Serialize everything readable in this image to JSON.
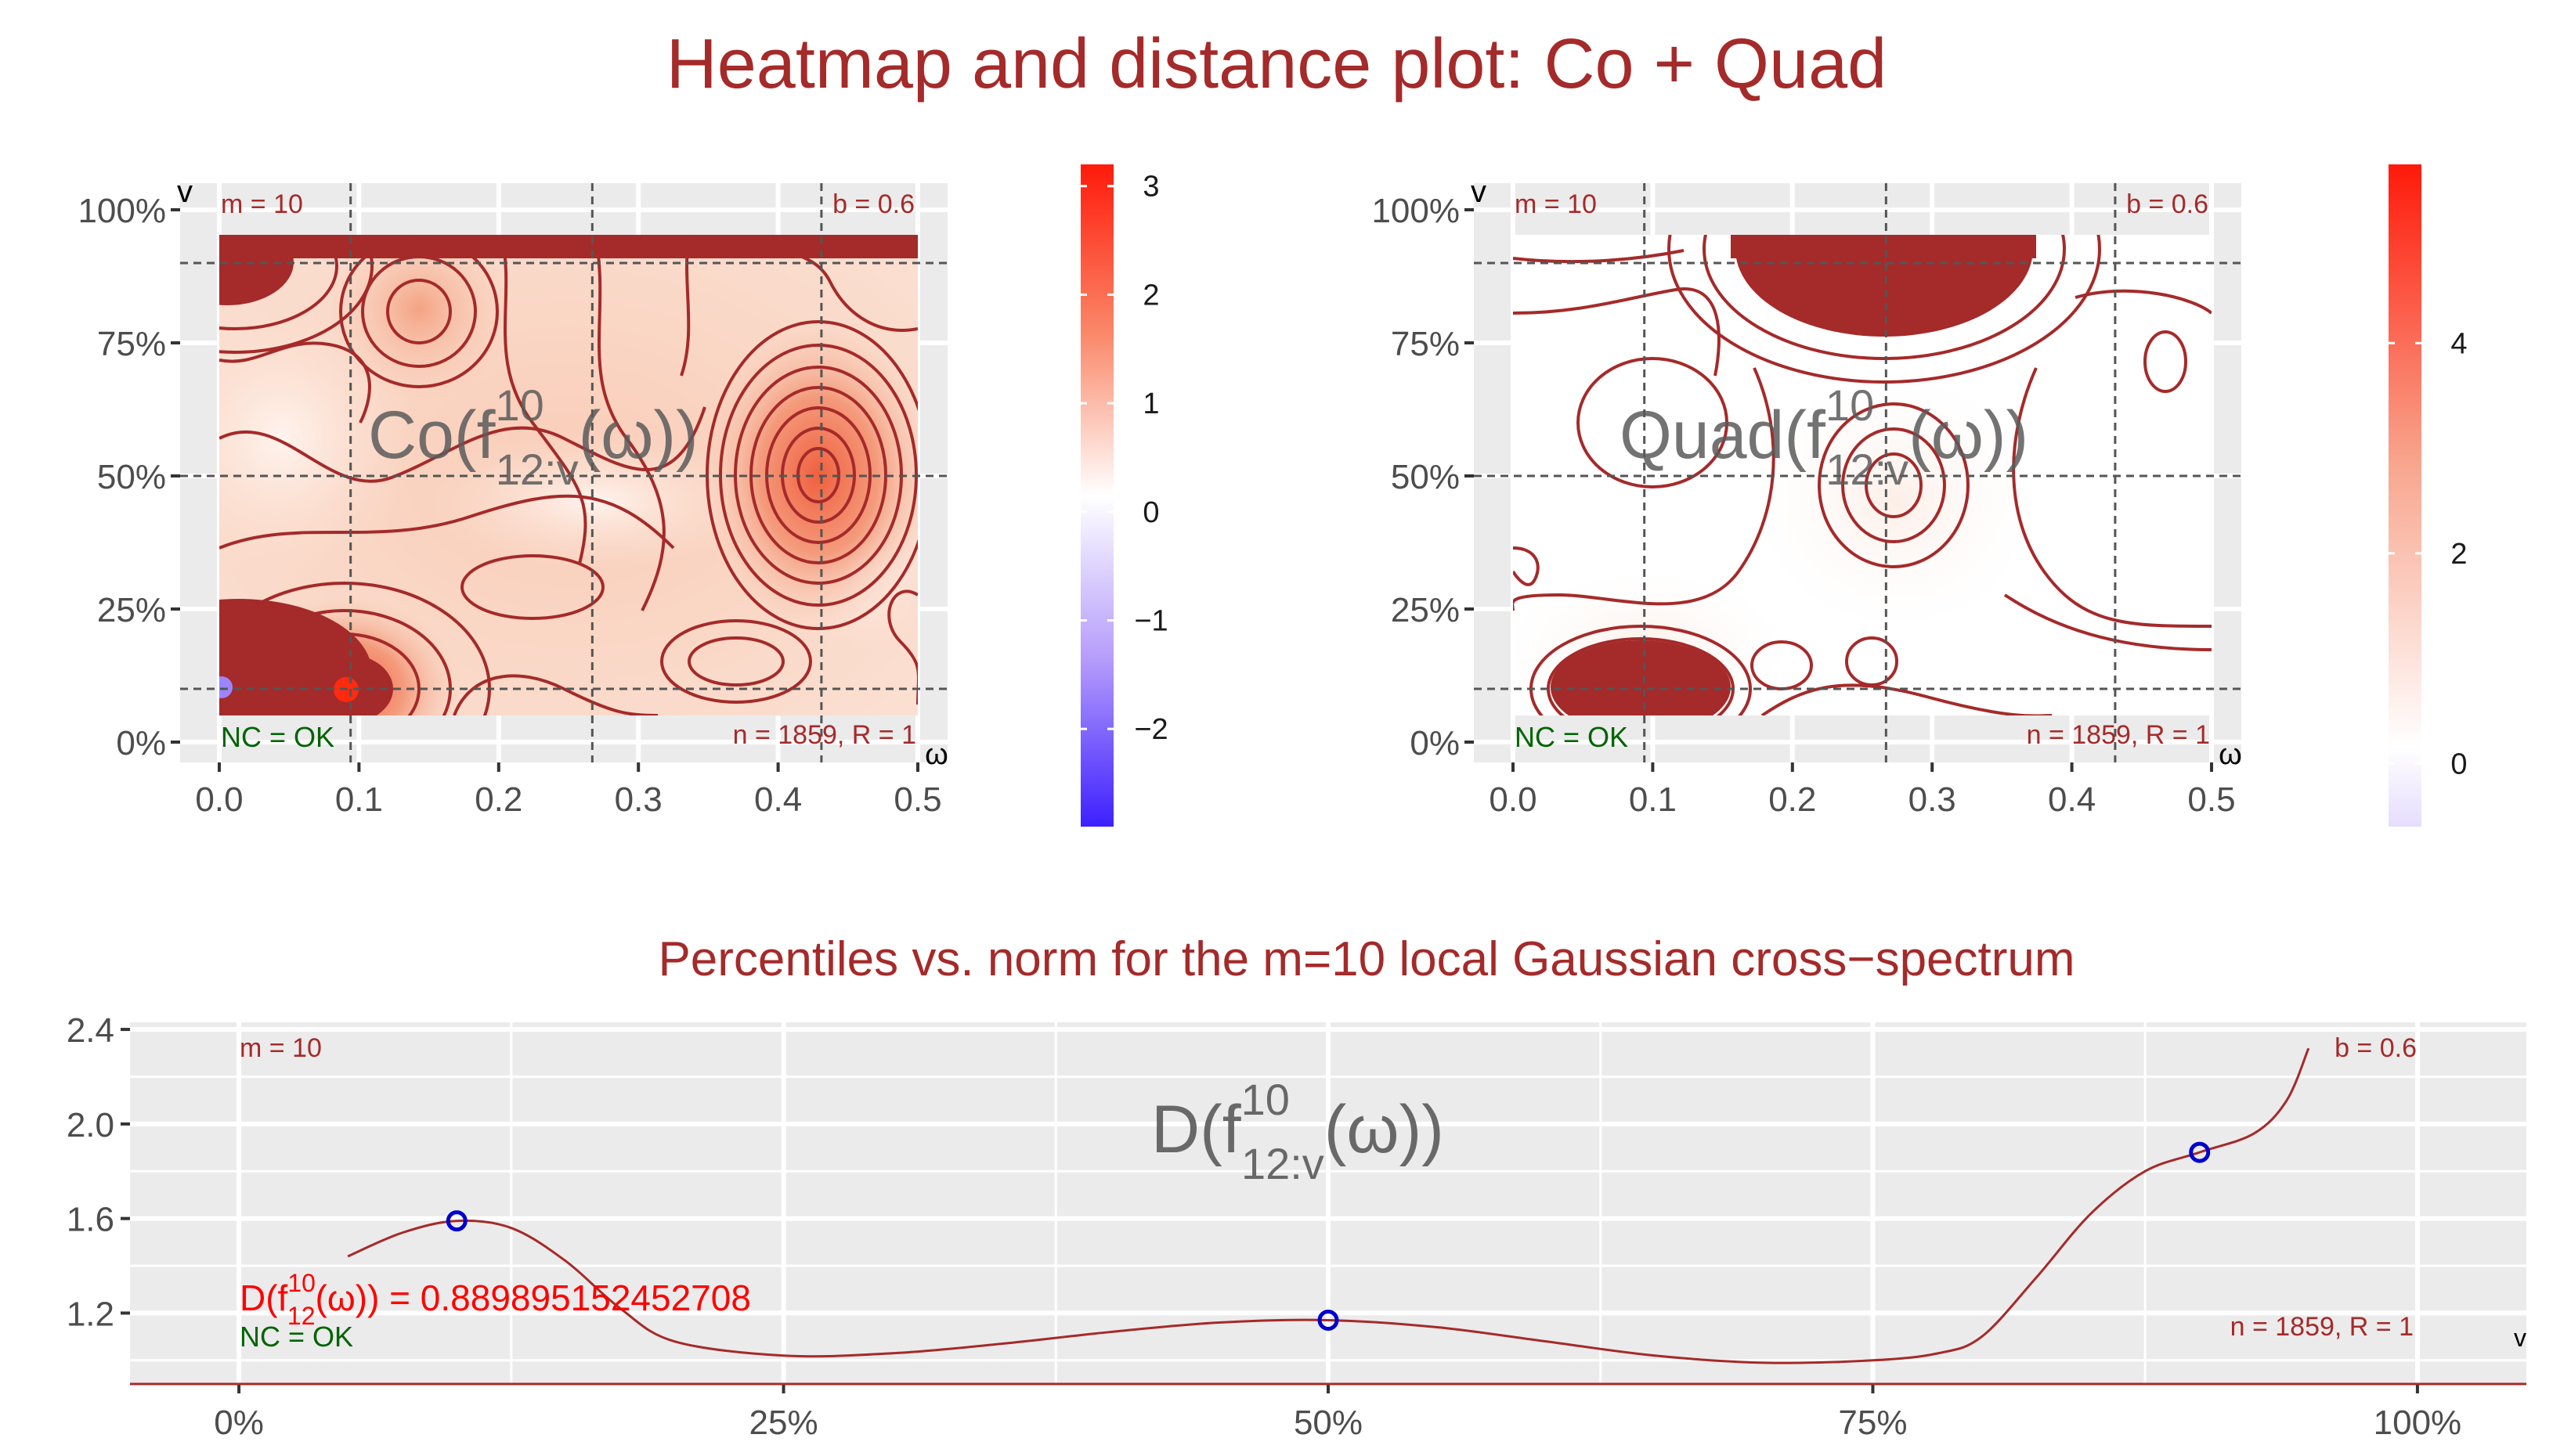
{
  "title": "Heatmap and distance plot: Co + Quad",
  "colors": {
    "title": "#A52A2A",
    "contour": "#A52A2A",
    "panel_bg": "#EBEBEB",
    "grid": "#FFFFFF",
    "low": "#3D20FF",
    "mid": "#FFFFFF",
    "high": "#FF2A10",
    "nc_label": "#006400",
    "point": "#0000CD",
    "distance_label": "#FF0000",
    "axis_text": "#4D4D4D"
  },
  "chart_data": [
    {
      "type": "heatmap",
      "id": "co",
      "panel_label": "Co(f^10_12:v(ω))",
      "label_main": "Co(f",
      "label_sup": "10",
      "label_sub": "12:v",
      "label_arg": "(ω))",
      "xlabel": "ω",
      "ylabel": "v",
      "xlim": [
        0,
        0.5
      ],
      "ylim": [
        0,
        1
      ],
      "data_range_y": [
        0.05,
        0.95
      ],
      "xticks": [
        "0.0",
        "0.1",
        "0.2",
        "0.3",
        "0.4",
        "0.5"
      ],
      "xtick_values": [
        0,
        0.1,
        0.2,
        0.3,
        0.4,
        0.5
      ],
      "yticks": [
        "0%",
        "25%",
        "50%",
        "75%",
        "100%"
      ],
      "ytick_values": [
        0,
        0.25,
        0.5,
        0.75,
        1.0
      ],
      "vlines": [
        0.094,
        0.267,
        0.431
      ],
      "hlines": [
        0.1,
        0.5,
        0.9
      ],
      "annot_topleft": "m = 10",
      "annot_topright": "b = 0.6",
      "annot_bottomleft": "NC = OK",
      "annot_bottomright": "n = 1859, R = 1",
      "colorbar": {
        "ticks": [
          "3",
          "2",
          "1",
          "0",
          "−1",
          "−2"
        ],
        "tick_values": [
          3,
          2,
          1,
          0,
          -1,
          -2
        ],
        "range": [
          -2.9,
          3.2
        ]
      }
    },
    {
      "type": "heatmap",
      "id": "quad",
      "panel_label": "Quad(f^10_12:v(ω))",
      "label_main": "Quad(f",
      "label_sup": "10",
      "label_sub": "12:v",
      "label_arg": "(ω))",
      "xlabel": "ω",
      "ylabel": "v",
      "xlim": [
        0,
        0.5
      ],
      "ylim": [
        0,
        1
      ],
      "data_range_y": [
        0.05,
        0.95
      ],
      "xticks": [
        "0.0",
        "0.1",
        "0.2",
        "0.3",
        "0.4",
        "0.5"
      ],
      "xtick_values": [
        0,
        0.1,
        0.2,
        0.3,
        0.4,
        0.5
      ],
      "yticks": [
        "0%",
        "25%",
        "50%",
        "75%",
        "100%"
      ],
      "ytick_values": [
        0,
        0.25,
        0.5,
        0.75,
        1.0
      ],
      "vlines": [
        0.094,
        0.267,
        0.431
      ],
      "hlines": [
        0.1,
        0.5,
        0.9
      ],
      "annot_topleft": "m = 10",
      "annot_topright": "b = 0.6",
      "annot_bottomleft": "NC = OK",
      "annot_bottomright": "n = 1859, R = 1",
      "colorbar": {
        "ticks": [
          "4",
          "2",
          "0"
        ],
        "tick_values": [
          4,
          2,
          0
        ],
        "range": [
          -0.6,
          5.7
        ]
      }
    },
    {
      "type": "line",
      "id": "distance",
      "title": "Percentiles vs. norm for the m=10 local Gaussian cross−spectrum",
      "panel_label": "D(f^10_12:v(ω))",
      "label_main": "D(f",
      "label_sup": "10",
      "label_sub": "12:v",
      "label_arg": "(ω))",
      "xlabel": "v",
      "xlim": [
        -0.05,
        1.05
      ],
      "ylim": [
        0.9,
        2.43
      ],
      "xticks": [
        "0%",
        "25%",
        "50%",
        "75%",
        "100%"
      ],
      "xtick_values": [
        0,
        0.25,
        0.5,
        0.75,
        1.0
      ],
      "yticks": [
        "2.4",
        "2.0",
        "1.6",
        "1.2"
      ],
      "ytick_values": [
        2.4,
        2.0,
        1.6,
        1.2
      ],
      "hline": 0.9,
      "curve": {
        "x": [
          0.05,
          0.075,
          0.1,
          0.125,
          0.15,
          0.175,
          0.2,
          0.25,
          0.3,
          0.35,
          0.4,
          0.45,
          0.5,
          0.55,
          0.6,
          0.65,
          0.7,
          0.75,
          0.78,
          0.8,
          0.825,
          0.85,
          0.875,
          0.9,
          0.925,
          0.94,
          0.95
        ],
        "y": [
          1.44,
          1.54,
          1.59,
          1.56,
          1.42,
          1.22,
          1.08,
          1.02,
          1.03,
          1.07,
          1.12,
          1.16,
          1.17,
          1.14,
          1.08,
          1.02,
          0.99,
          1.0,
          1.03,
          1.1,
          1.35,
          1.62,
          1.8,
          1.88,
          1.96,
          2.1,
          2.32
        ]
      },
      "points": {
        "x": [
          0.1,
          0.5,
          0.9
        ],
        "y": [
          1.59,
          1.17,
          1.88
        ]
      },
      "annot_topleft": "m = 10",
      "annot_topright": "b = 0.6",
      "annot_bottomleft": "NC = OK",
      "annot_bottomright": "n = 1859, R = 1",
      "distance_label_main": "D(f",
      "distance_label_sup": "10",
      "distance_label_sub": "12",
      "distance_label_value": "(ω)) = 0.889895152452708"
    }
  ]
}
